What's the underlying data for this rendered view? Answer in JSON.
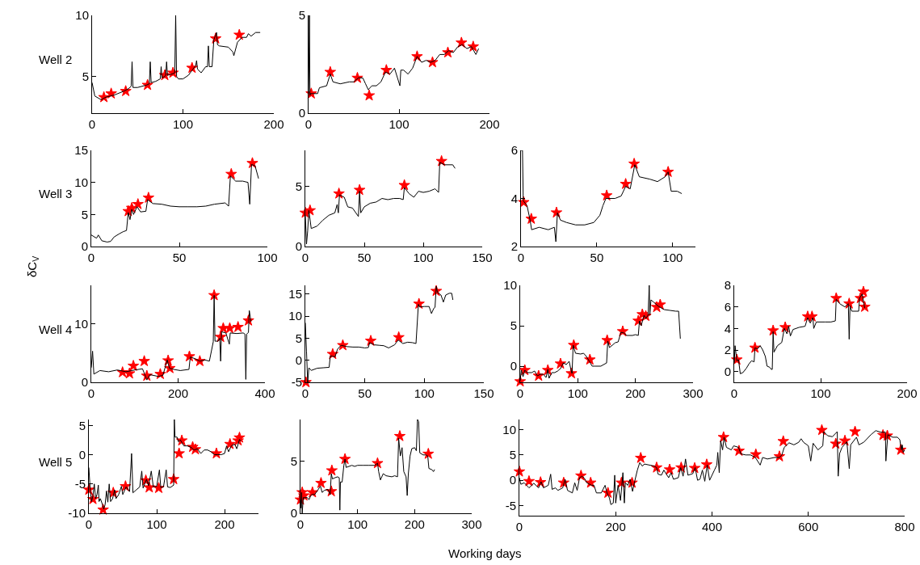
{
  "chart_data": [
    {
      "type": "line",
      "annotations": [
        "Well 2"
      ],
      "xlim": [
        0,
        200
      ],
      "xticks": [
        0,
        100,
        200
      ],
      "ylim": [
        2,
        10
      ],
      "yticks": [
        5,
        10
      ],
      "series": [
        {
          "type": "line",
          "color": "#000000",
          "x": [
            0,
            3,
            10,
            15,
            25,
            35,
            40,
            43,
            44,
            45,
            50,
            60,
            63,
            64,
            65,
            70,
            75,
            76,
            77,
            80,
            81,
            82,
            83,
            88,
            91,
            92,
            93,
            95,
            100,
            106,
            110,
            114,
            115,
            116,
            120,
            125,
            127,
            128,
            129,
            132,
            134,
            137,
            138,
            140,
            150,
            155,
            156,
            160,
            165,
            170,
            172,
            175,
            180,
            185
          ],
          "values": [
            4.5,
            3.4,
            3.1,
            3.3,
            3.5,
            3.8,
            4.0,
            4.2,
            6.2,
            4.1,
            4.1,
            4.3,
            4.4,
            6.2,
            4.5,
            4.6,
            4.8,
            5.8,
            4.9,
            5.0,
            5.1,
            6.2,
            5.1,
            5.2,
            5.3,
            10.0,
            5.0,
            4.8,
            4.8,
            5.1,
            5.5,
            5.9,
            6.3,
            5.6,
            5.3,
            5.8,
            5.8,
            7.5,
            5.8,
            5.8,
            8.0,
            8.6,
            7.6,
            7.5,
            7.4,
            7.0,
            6.7,
            7.8,
            8.2,
            8.2,
            8.5,
            8.3,
            8.6,
            8.6
          ]
        },
        {
          "type": "scatter",
          "marker": "star",
          "color": "#ff0000",
          "x": [
            13,
            21,
            37,
            61,
            80,
            89,
            110,
            136,
            162
          ],
          "values": [
            3.3,
            3.6,
            3.8,
            4.3,
            5.1,
            5.3,
            5.7,
            8.1,
            8.4
          ]
        }
      ]
    },
    {
      "type": "line",
      "xlim": [
        0,
        200
      ],
      "xticks": [
        0,
        100,
        200
      ],
      "ylim": [
        0,
        5
      ],
      "yticks": [
        0,
        5
      ],
      "series": [
        {
          "type": "line",
          "color": "#000000",
          "x": [
            0,
            1,
            1.5,
            2,
            5,
            10,
            12,
            20,
            24,
            27,
            35,
            45,
            50,
            55,
            60,
            63,
            66,
            70,
            75,
            80,
            85,
            90,
            95,
            101,
            102,
            105,
            110,
            115,
            120,
            125,
            130,
            135,
            140,
            145,
            150,
            155,
            160,
            165,
            170,
            175,
            180,
            185,
            188
          ],
          "values": [
            1.0,
            5.0,
            0.9,
            1.0,
            1.0,
            1.0,
            1.3,
            1.4,
            2.0,
            1.6,
            1.5,
            1.6,
            1.6,
            1.8,
            1.8,
            1.5,
            1.2,
            1.4,
            1.4,
            1.6,
            2.1,
            2.0,
            2.3,
            1.4,
            2.2,
            2.2,
            2.0,
            2.3,
            2.9,
            2.6,
            2.7,
            2.6,
            2.7,
            3.0,
            3.0,
            3.2,
            3.1,
            3.4,
            3.5,
            3.3,
            3.4,
            3.0,
            3.3
          ]
        },
        {
          "type": "scatter",
          "marker": "star",
          "color": "#ff0000",
          "x": [
            3,
            24,
            54,
            67,
            86,
            120,
            137,
            154,
            169,
            182
          ],
          "values": [
            1.0,
            2.1,
            1.8,
            0.9,
            2.2,
            2.9,
            2.6,
            3.1,
            3.6,
            3.4
          ]
        }
      ]
    },
    {
      "type": "line",
      "annotations": [
        "Well 3"
      ],
      "ylabel": "δC$_{V}$",
      "xlim": [
        0,
        100
      ],
      "xticks": [
        0,
        50,
        100
      ],
      "ylim": [
        0,
        15
      ],
      "yticks": [
        0,
        5,
        10,
        15
      ],
      "series": [
        {
          "type": "line",
          "color": "#000000",
          "x": [
            0,
            3,
            4,
            6,
            9,
            11,
            13,
            16,
            18,
            20,
            21,
            22,
            23,
            24,
            26,
            28,
            31,
            32,
            35,
            40,
            45,
            50,
            55,
            60,
            65,
            70,
            76,
            78,
            79,
            82,
            86,
            89,
            90,
            91,
            93,
            95
          ],
          "values": [
            1.8,
            1.3,
            1.8,
            0.9,
            0.7,
            0.8,
            1.5,
            2.0,
            2.3,
            2.5,
            5.3,
            4.2,
            5.8,
            5.0,
            6.2,
            5.4,
            5.5,
            7.3,
            6.7,
            6.6,
            6.3,
            6.2,
            6.2,
            6.2,
            6.3,
            6.6,
            6.8,
            6.3,
            11.0,
            10.2,
            10.2,
            10.0,
            6.6,
            12.8,
            12.6,
            10.6
          ]
        },
        {
          "type": "scatter",
          "marker": "star",
          "color": "#ff0000",
          "x": [
            21,
            23,
            26.5,
            32.5,
            79.5,
            91.5
          ],
          "values": [
            5.5,
            6.0,
            6.6,
            7.6,
            11.3,
            13.0
          ]
        }
      ]
    },
    {
      "type": "line",
      "xlim": [
        0,
        150
      ],
      "xticks": [
        0,
        50,
        100,
        150
      ],
      "ylim": [
        0,
        8
      ],
      "yticks": [
        0,
        5
      ],
      "series": [
        {
          "type": "line",
          "color": "#000000",
          "x": [
            0,
            1,
            2,
            3,
            5,
            10,
            15,
            20,
            25,
            27,
            28,
            29,
            33,
            36,
            40,
            45,
            46,
            47,
            50,
            55,
            60,
            65,
            70,
            75,
            80,
            83,
            84,
            88,
            92,
            96,
            100,
            105,
            110,
            113,
            114,
            118,
            125,
            127
          ],
          "values": [
            2.6,
            0.2,
            1.3,
            3.0,
            1.5,
            1.7,
            2.2,
            2.6,
            2.8,
            3.5,
            2.8,
            4.3,
            4.1,
            3.3,
            3.2,
            2.5,
            4.6,
            2.8,
            3.3,
            3.6,
            3.7,
            4.0,
            3.9,
            4.0,
            4.0,
            3.9,
            4.9,
            4.4,
            4.1,
            4.6,
            4.5,
            4.6,
            4.8,
            4.5,
            7.0,
            6.8,
            6.8,
            6.5
          ]
        },
        {
          "type": "scatter",
          "marker": "star",
          "color": "#ff0000",
          "x": [
            0,
            4,
            28.5,
            46,
            84,
            115.5
          ],
          "values": [
            2.8,
            3.0,
            4.4,
            4.7,
            5.1,
            7.1
          ]
        }
      ]
    },
    {
      "type": "line",
      "xlim": [
        0,
        115
      ],
      "xticks": [
        0,
        50,
        100
      ],
      "ylim": [
        2,
        6
      ],
      "yticks": [
        2,
        4,
        6
      ],
      "series": [
        {
          "type": "line",
          "color": "#000000",
          "x": [
            0,
            1,
            1.5,
            4,
            6,
            7,
            12,
            18,
            22,
            23,
            24,
            26,
            30,
            36,
            42,
            48,
            52,
            54,
            56,
            62,
            66,
            69,
            72,
            75,
            78,
            85,
            90,
            95,
            97,
            99,
            103,
            106
          ],
          "values": [
            6.0,
            6.0,
            3.9,
            3.7,
            3.1,
            2.7,
            2.8,
            2.7,
            2.8,
            2.2,
            3.4,
            3.1,
            3.0,
            2.9,
            2.9,
            3.0,
            3.3,
            3.7,
            4.0,
            4.0,
            4.1,
            4.5,
            4.4,
            5.4,
            4.9,
            4.8,
            4.7,
            4.9,
            5.1,
            4.3,
            4.3,
            4.2
          ]
        },
        {
          "type": "scatter",
          "marker": "star",
          "color": "#ff0000",
          "x": [
            1.8,
            6.8,
            23.4,
            56.5,
            69,
            74.6,
            97
          ],
          "values": [
            3.84,
            3.15,
            3.41,
            4.12,
            4.6,
            5.44,
            5.1
          ]
        }
      ]
    },
    {
      "type": "line",
      "annotations": [
        "Well 4"
      ],
      "xlim": [
        0,
        400
      ],
      "xticks": [
        0,
        200,
        400
      ],
      "ylim": [
        0,
        16.5
      ],
      "yticks": [
        0,
        10
      ],
      "series": [
        {
          "type": "line",
          "color": "#000000",
          "x": [
            0,
            3,
            6,
            20,
            40,
            60,
            80,
            100,
            118,
            125,
            128,
            135,
            155,
            165,
            175,
            180,
            190,
            205,
            225,
            228,
            240,
            250,
            262,
            272,
            281,
            283,
            285,
            292,
            296,
            298,
            300,
            310,
            318,
            320,
            335,
            350,
            354,
            356,
            358,
            362,
            364,
            368
          ],
          "values": [
            2.5,
            5.3,
            1.4,
            2.0,
            1.8,
            2.1,
            1.8,
            2.1,
            2.3,
            1.0,
            0.4,
            1.3,
            1.0,
            1.2,
            3.8,
            2.4,
            2.2,
            2.0,
            2.2,
            4.3,
            4.0,
            3.6,
            3.8,
            3.6,
            6.9,
            14.8,
            7.0,
            7.0,
            7.5,
            3.6,
            8.6,
            8.4,
            6.5,
            8.4,
            8.3,
            8.4,
            8.2,
            0.5,
            8.2,
            8.5,
            12.2,
            10.3
          ]
        },
        {
          "type": "scatter",
          "marker": "star",
          "color": "#ff0000",
          "x": [
            72,
            88,
            97,
            122,
            128,
            159,
            177,
            181,
            226,
            250,
            283,
            298,
            304,
            319,
            338,
            362
          ],
          "values": [
            1.7,
            1.5,
            2.8,
            3.6,
            1.1,
            1.4,
            3.7,
            2.4,
            4.4,
            3.6,
            14.8,
            7.7,
            9.2,
            9.2,
            9.4,
            10.5
          ]
        }
      ]
    },
    {
      "type": "line",
      "xlim": [
        0,
        150
      ],
      "xticks": [
        0,
        50,
        100,
        150
      ],
      "ylim": [
        -5,
        17
      ],
      "yticks": [
        -5,
        0,
        5,
        10,
        15
      ],
      "series": [
        {
          "type": "line",
          "color": "#000000",
          "x": [
            0,
            1,
            2,
            3,
            5,
            10,
            15,
            20,
            21,
            25,
            27,
            30,
            35,
            40,
            45,
            50,
            53,
            54,
            58,
            62,
            66,
            70,
            75,
            78,
            82,
            86,
            90,
            93,
            95,
            96,
            100,
            104,
            106,
            108,
            109,
            110,
            111,
            114,
            116,
            118,
            121,
            123,
            124
          ],
          "values": [
            8.5,
            2.0,
            -5.0,
            -1.7,
            -2.3,
            -1.8,
            -1.7,
            -1.6,
            1.0,
            0.8,
            2.5,
            3.4,
            3.1,
            3.0,
            3.0,
            2.8,
            2.9,
            4.0,
            3.5,
            3.4,
            3.3,
            2.8,
            3.5,
            4.6,
            3.8,
            4.1,
            4.0,
            3.8,
            12.7,
            12.1,
            12.2,
            12.2,
            10.6,
            11.8,
            12.0,
            16.8,
            15.4,
            14.8,
            13.2,
            14.8,
            15.2,
            15.2,
            13.7
          ]
        },
        {
          "type": "scatter",
          "marker": "star",
          "color": "#ff0000",
          "x": [
            0.5,
            23,
            31.5,
            55,
            78.5,
            95.5,
            110
          ],
          "values": [
            -5.0,
            1.4,
            3.4,
            4.4,
            5.2,
            12.8,
            15.7
          ]
        }
      ]
    },
    {
      "type": "line",
      "xlim": [
        0,
        300
      ],
      "xticks": [
        0,
        100,
        200,
        300
      ],
      "ylim": [
        -2,
        10
      ],
      "yticks": [
        0,
        5,
        10
      ],
      "series": [
        {
          "type": "line",
          "color": "#000000",
          "x": [
            0,
            2,
            5,
            8,
            12,
            20,
            25,
            30,
            35,
            40,
            45,
            48,
            50,
            55,
            60,
            65,
            70,
            75,
            80,
            85,
            88,
            90,
            92,
            96,
            105,
            110,
            115,
            120,
            125,
            130,
            140,
            150,
            152,
            155,
            160,
            165,
            170,
            175,
            180,
            185,
            195,
            200,
            205,
            207,
            210,
            215,
            218,
            222,
            224,
            225,
            227,
            232,
            240,
            250,
            260,
            270,
            275,
            278
          ],
          "values": [
            -1.8,
            -0.5,
            -1.3,
            -0.5,
            -0.8,
            -0.8,
            -0.6,
            -1.2,
            -1.0,
            -1.0,
            -1.4,
            -0.4,
            -1.5,
            -0.8,
            -0.8,
            -0.6,
            -0.3,
            0.4,
            0.2,
            0.6,
            -0.4,
            -0.9,
            2.6,
            1.6,
            1.5,
            1.6,
            1.2,
            0.6,
            0.0,
            0.0,
            0.0,
            0.4,
            3.1,
            2.3,
            2.6,
            2.9,
            3.0,
            4.2,
            4.1,
            3.8,
            3.8,
            3.9,
            3.8,
            5.6,
            5.0,
            6.3,
            5.9,
            6.3,
            10.0,
            6.3,
            8.2,
            7.9,
            7.4,
            7.0,
            6.9,
            6.8,
            6.8,
            3.4
          ]
        },
        {
          "type": "scatter",
          "marker": "star",
          "color": "#ff0000",
          "x": [
            0,
            8,
            32,
            48,
            70,
            89,
            93,
            121,
            151,
            178,
            205,
            212,
            218,
            237,
            243
          ],
          "values": [
            -1.9,
            -0.5,
            -1.2,
            -0.5,
            0.3,
            -0.9,
            2.6,
            0.8,
            3.2,
            4.3,
            5.6,
            6.4,
            6.2,
            7.3,
            7.6
          ]
        }
      ]
    },
    {
      "type": "line",
      "xlim": [
        0,
        200
      ],
      "xticks": [
        0,
        100,
        200
      ],
      "ylim": [
        -1,
        8
      ],
      "yticks": [
        0,
        2,
        4,
        6,
        8
      ],
      "series": [
        {
          "type": "line",
          "color": "#000000",
          "x": [
            0,
            1,
            3,
            5,
            7,
            10,
            14,
            17,
            20,
            23,
            24,
            27,
            30,
            33,
            36,
            38,
            41,
            43,
            44,
            45,
            46,
            50,
            55,
            58,
            61,
            63,
            65,
            68,
            75,
            82,
            85,
            88,
            91,
            92,
            95,
            105,
            112,
            117,
            118,
            122,
            128,
            132,
            133,
            134,
            136,
            144,
            145,
            148,
            150,
            151
          ],
          "values": [
            0.8,
            2.4,
            1.0,
            1.1,
            -0.2,
            -0.1,
            0.3,
            0.7,
            1.0,
            0.9,
            2.2,
            2.1,
            2.4,
            2.0,
            1.4,
            0.5,
            0.4,
            0.2,
            0.2,
            3.7,
            1.8,
            2.4,
            2.7,
            4.0,
            3.5,
            4.2,
            3.3,
            3.9,
            4.1,
            4.2,
            5.0,
            4.5,
            5.0,
            4.0,
            4.6,
            4.6,
            4.6,
            4.7,
            6.7,
            6.3,
            6.0,
            6.3,
            3.0,
            6.1,
            5.6,
            5.6,
            6.8,
            7.2,
            6.3,
            5.9
          ]
        },
        {
          "type": "scatter",
          "marker": "star",
          "color": "#ff0000",
          "x": [
            3,
            24,
            45,
            59,
            85,
            90,
            118,
            133,
            146,
            149.5,
            151
          ],
          "values": [
            1.1,
            2.2,
            3.8,
            4.1,
            5.1,
            5.1,
            6.8,
            6.3,
            6.8,
            7.4,
            6.0
          ]
        }
      ]
    },
    {
      "type": "line",
      "annotations": [
        "Well 5"
      ],
      "xlim": [
        0,
        250
      ],
      "xticks": [
        0,
        100,
        200
      ],
      "ylim": [
        -10,
        6
      ],
      "yticks": [
        -10,
        -5,
        0,
        5
      ],
      "series": [
        {
          "type": "line",
          "color": "#000000",
          "x": [
            0,
            2,
            4,
            6,
            8,
            10,
            12,
            14,
            15,
            17,
            20,
            22,
            24,
            26,
            28,
            30,
            32,
            35,
            38,
            40,
            44,
            48,
            50,
            55,
            60,
            63,
            65,
            70,
            75,
            78,
            80,
            85,
            88,
            92,
            95,
            100,
            104,
            106,
            110,
            114,
            116,
            120,
            125,
            126,
            127,
            130,
            132,
            135,
            140,
            145,
            150,
            155,
            160,
            165,
            170,
            175,
            180,
            185,
            190,
            195,
            200,
            203,
            206,
            210,
            215,
            218,
            222,
            224
          ],
          "values": [
            -2.2,
            -6.0,
            -8.0,
            -7.0,
            -5.0,
            -7.5,
            -6.8,
            -5.2,
            -8.0,
            -7.5,
            -8.5,
            -9.3,
            -8.5,
            -6.2,
            -8.1,
            -5.0,
            -8.0,
            -7.5,
            -6.0,
            -7.5,
            -6.8,
            -5.4,
            -6.8,
            -5.5,
            -6.3,
            0.2,
            -6.5,
            -6.0,
            -5.5,
            -2.8,
            -5.7,
            -4.2,
            -5.3,
            -2.8,
            -5.5,
            -5.4,
            -2.6,
            -5.6,
            -5.5,
            -2.6,
            -5.5,
            -5.6,
            -5.2,
            6.0,
            3.0,
            3.0,
            2.2,
            2.5,
            1.5,
            1.5,
            1.3,
            0.8,
            1.0,
            0.2,
            0.8,
            0.8,
            0.5,
            0.0,
            0.0,
            0.0,
            0.2,
            1.5,
            0.5,
            1.5,
            1.8,
            1.0,
            2.6,
            2.3
          ]
        },
        {
          "type": "scatter",
          "marker": "star",
          "color": "#ff0000",
          "x": [
            0,
            6,
            21,
            36,
            54,
            84,
            89,
            103,
            125,
            133,
            137,
            153,
            157,
            188,
            208,
            220,
            222
          ],
          "values": [
            -6.0,
            -7.6,
            -9.4,
            -6.5,
            -5.4,
            -4.4,
            -5.6,
            -5.7,
            -4.2,
            0.2,
            2.4,
            1.3,
            0.9,
            0.2,
            1.8,
            2.4,
            2.9
          ]
        }
      ]
    },
    {
      "type": "line",
      "xlabel": "Working days",
      "xlim": [
        0,
        300
      ],
      "xticks": [
        0,
        100,
        200,
        300
      ],
      "ylim": [
        0,
        9
      ],
      "yticks": [
        0,
        5
      ],
      "series": [
        {
          "type": "line",
          "color": "#000000",
          "x": [
            0,
            1,
            2,
            3,
            5,
            8,
            12,
            15,
            18,
            20,
            25,
            30,
            35,
            38,
            42,
            48,
            52,
            54,
            56,
            60,
            65,
            68,
            69,
            70,
            73,
            76,
            78,
            80,
            90,
            95,
            100,
            110,
            120,
            130,
            135,
            137,
            140,
            145,
            150,
            160,
            165,
            170,
            172,
            175,
            178,
            181,
            185,
            187,
            189,
            192,
            195,
            200,
            203,
            205,
            207,
            209,
            215,
            220,
            223,
            225,
            230,
            233,
            235
          ],
          "values": [
            1.3,
            0.5,
            2.0,
            0.0,
            1.5,
            1.5,
            1.5,
            1.3,
            1.7,
            1.8,
            1.8,
            2.2,
            2.6,
            2.0,
            2.2,
            2.3,
            1.8,
            3.8,
            3.3,
            3.4,
            3.5,
            3.4,
            0.3,
            3.0,
            3.0,
            4.6,
            5.2,
            4.4,
            4.6,
            4.5,
            4.6,
            4.6,
            4.6,
            4.6,
            4.8,
            4.0,
            3.2,
            3.8,
            3.6,
            3.5,
            3.6,
            3.5,
            7.2,
            5.5,
            6.3,
            4.0,
            3.5,
            1.7,
            3.8,
            5.5,
            6.2,
            6.3,
            6.0,
            9.0,
            8.8,
            5.8,
            5.6,
            5.6,
            5.5,
            4.3,
            4.2,
            4.0,
            4.2
          ]
        },
        {
          "type": "scatter",
          "marker": "star",
          "color": "#ff0000",
          "x": [
            0,
            3,
            6,
            21,
            36,
            54,
            55,
            78,
            135,
            174,
            224
          ],
          "values": [
            1.3,
            2.0,
            1.7,
            2.0,
            2.9,
            2.1,
            4.1,
            5.2,
            4.8,
            7.4,
            5.7
          ]
        }
      ]
    },
    {
      "type": "line",
      "xlim": [
        0,
        800
      ],
      "xticks": [
        0,
        200,
        400,
        600,
        800
      ],
      "ylim": [
        -7,
        12
      ],
      "yticks": [
        -5,
        0,
        5,
        10
      ],
      "series": [
        {
          "type": "line",
          "color": "#000000",
          "x": [
            0,
            3,
            10,
            20,
            30,
            40,
            45,
            50,
            60,
            65,
            68,
            75,
            80,
            90,
            95,
            100,
            110,
            115,
            120,
            125,
            130,
            135,
            140,
            150,
            155,
            160,
            170,
            178,
            182,
            187,
            190,
            195,
            198,
            200,
            205,
            210,
            215,
            218,
            220,
            225,
            230,
            235,
            240,
            245,
            250,
            255,
            260,
            270,
            280,
            285,
            288,
            295,
            300,
            310,
            315,
            320,
            330,
            335,
            340,
            345,
            350,
            360,
            365,
            370,
            375,
            380,
            385,
            390,
            395,
            405,
            410,
            412,
            415,
            418,
            422,
            425,
            430,
            440,
            445,
            455,
            460,
            470,
            480,
            490,
            500,
            505,
            515,
            530,
            540,
            545,
            550,
            560,
            570,
            580,
            585,
            590,
            600,
            605,
            610,
            620,
            630,
            632,
            640,
            650,
            660,
            662,
            665,
            670,
            680,
            685,
            688,
            700,
            705,
            715,
            730,
            740,
            750,
            760,
            761,
            765,
            775,
            785,
            790,
            793,
            795,
            797,
            800
          ],
          "values": [
            0.5,
            -0.8,
            -0.5,
            -1.5,
            -0.6,
            -1.5,
            -0.3,
            -1.5,
            -1.0,
            1.2,
            -1.8,
            -1.5,
            -2.0,
            -1.5,
            0.2,
            -2.0,
            -2.5,
            -0.5,
            -2.0,
            0.5,
            0.8,
            0.4,
            -0.5,
            -1.0,
            -1.0,
            -2.5,
            -2.5,
            -1.0,
            -2.5,
            -3.5,
            -4.8,
            -4.5,
            1.0,
            -4.5,
            -1.0,
            -4.0,
            1.5,
            -4.5,
            -0.5,
            -1.0,
            0.2,
            -2.2,
            0.0,
            2.0,
            3.5,
            2.8,
            3.2,
            3.0,
            2.8,
            2.5,
            1.2,
            1.0,
            2.0,
            0.5,
            1.5,
            0.2,
            0.5,
            2.5,
            0.8,
            4.2,
            1.0,
            1.3,
            2.5,
            0.0,
            0.2,
            2.0,
            -0.2,
            3.0,
            0.0,
            2.0,
            3.0,
            5.5,
            1.5,
            7.8,
            6.0,
            8.5,
            6.5,
            6.0,
            6.8,
            6.5,
            5.2,
            5.0,
            5.0,
            4.5,
            3.0,
            4.5,
            4.2,
            4.5,
            4.5,
            5.0,
            6.5,
            7.4,
            7.0,
            7.5,
            8.2,
            7.5,
            6.8,
            3.8,
            7.3,
            6.0,
            6.8,
            9.6,
            8.8,
            8.6,
            9.6,
            0.8,
            5.3,
            6.5,
            7.6,
            2.3,
            7.0,
            8.5,
            7.0,
            7.5,
            9.0,
            9.8,
            9.5,
            9.5,
            3.8,
            9.0,
            8.5,
            8.5,
            8.0,
            6.0,
            7.0,
            5.5,
            6.0
          ]
        },
        {
          "type": "scatter",
          "marker": "star",
          "color": "#ff0000",
          "x": [
            0,
            20,
            44,
            92,
            128,
            148,
            184,
            212,
            234,
            252,
            285,
            312,
            336,
            364,
            389,
            424,
            456,
            491,
            540,
            548,
            628,
            657,
            676,
            697,
            755,
            764,
            792
          ],
          "values": [
            1.7,
            -0.2,
            -0.4,
            -0.5,
            0.9,
            -0.5,
            -2.5,
            -0.5,
            -0.5,
            4.4,
            2.5,
            2.1,
            2.5,
            2.4,
            3.1,
            8.5,
            5.8,
            5.1,
            4.7,
            7.7,
            9.9,
            7.2,
            7.8,
            9.6,
            8.9,
            8.8,
            6.0
          ]
        }
      ]
    }
  ]
}
